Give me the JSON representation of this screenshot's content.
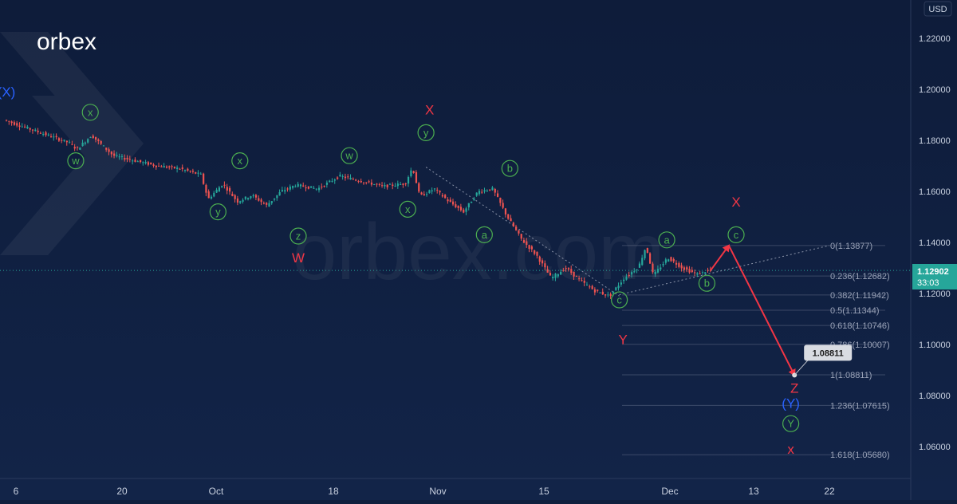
{
  "brand": {
    "logo_text": "orbex",
    "watermark_text": "orbex.com"
  },
  "currency": "USD",
  "price_badge": {
    "price": "1.12902",
    "countdown": "33:03"
  },
  "colors": {
    "background": "#0f1f3d",
    "wave_green": "#4caf50",
    "wave_red": "#f23645",
    "wave_blue": "#2962ff",
    "candle_up": "#26a69a",
    "candle_down": "#ef5350",
    "badge_bg": "#26a69a",
    "arrow": "#f23645"
  },
  "chart_data": {
    "type": "candlestick",
    "instrument_currency": "USD",
    "y_axis": {
      "ticks": [
        "1.22000",
        "1.20000",
        "1.18000",
        "1.16000",
        "1.14000",
        "1.12000",
        "1.10000",
        "1.08000",
        "1.06000"
      ],
      "range": [
        1.048,
        1.231
      ]
    },
    "x_axis": {
      "ticks": [
        "6",
        "20",
        "Oct",
        "18",
        "Nov",
        "15",
        "Dec",
        "13",
        "22"
      ]
    },
    "price_path": [
      [
        0,
        1.188
      ],
      [
        3,
        1.185
      ],
      [
        6,
        1.182
      ],
      [
        9,
        1.179
      ],
      [
        10,
        1.1765
      ],
      [
        12,
        1.182
      ],
      [
        15,
        1.174
      ],
      [
        18,
        1.172
      ],
      [
        21,
        1.17
      ],
      [
        24,
        1.169
      ],
      [
        27,
        1.1665
      ],
      [
        28,
        1.157
      ],
      [
        30,
        1.163
      ],
      [
        32,
        1.156
      ],
      [
        34,
        1.1585
      ],
      [
        36,
        1.1545
      ],
      [
        38,
        1.16
      ],
      [
        40,
        1.1625
      ],
      [
        43,
        1.161
      ],
      [
        46,
        1.166
      ],
      [
        49,
        1.164
      ],
      [
        52,
        1.162
      ],
      [
        55,
        1.163
      ],
      [
        56,
        1.1695
      ],
      [
        57,
        1.158
      ],
      [
        59,
        1.161
      ],
      [
        61,
        1.156
      ],
      [
        63,
        1.152
      ],
      [
        65,
        1.16
      ],
      [
        67,
        1.161
      ],
      [
        69,
        1.15
      ],
      [
        71,
        1.141
      ],
      [
        73,
        1.135
      ],
      [
        75,
        1.126
      ],
      [
        77,
        1.13
      ],
      [
        79,
        1.125
      ],
      [
        81,
        1.121
      ],
      [
        83,
        1.119
      ],
      [
        85,
        1.126
      ],
      [
        87,
        1.1305
      ],
      [
        88,
        1.1385
      ],
      [
        89,
        1.127
      ],
      [
        91,
        1.134
      ],
      [
        93,
        1.13
      ],
      [
        95,
        1.1275
      ],
      [
        96.5,
        1.129
      ]
    ],
    "wave_labels": [
      {
        "text": "(X)",
        "x": 0,
        "price": 1.199,
        "color": "blue",
        "circled": false
      },
      {
        "text": "x",
        "x": 11.5,
        "price": 1.191,
        "color": "green",
        "circled": true
      },
      {
        "text": "w",
        "x": 9.5,
        "price": 1.172,
        "color": "green",
        "circled": true
      },
      {
        "text": "x",
        "x": 32,
        "price": 1.172,
        "color": "green",
        "circled": true
      },
      {
        "text": "y",
        "x": 29,
        "price": 1.152,
        "color": "green",
        "circled": true
      },
      {
        "text": "z",
        "x": 40,
        "price": 1.1425,
        "color": "green",
        "circled": true
      },
      {
        "text": "W",
        "x": 40,
        "price": 1.134,
        "color": "red",
        "circled": false
      },
      {
        "text": "w",
        "x": 47,
        "price": 1.174,
        "color": "green",
        "circled": true
      },
      {
        "text": "x",
        "x": 55,
        "price": 1.153,
        "color": "green",
        "circled": true
      },
      {
        "text": "X",
        "x": 58,
        "price": 1.192,
        "color": "red",
        "circled": false
      },
      {
        "text": "y",
        "x": 57.5,
        "price": 1.183,
        "color": "green",
        "circled": true
      },
      {
        "text": "b",
        "x": 69,
        "price": 1.169,
        "color": "green",
        "circled": true
      },
      {
        "text": "a",
        "x": 65.5,
        "price": 1.143,
        "color": "green",
        "circled": true
      },
      {
        "text": "c",
        "x": 84,
        "price": 1.1175,
        "color": "green",
        "circled": true
      },
      {
        "text": "Y",
        "x": 84.5,
        "price": 1.102,
        "color": "red",
        "circled": false
      },
      {
        "text": "a",
        "x": 90.5,
        "price": 1.141,
        "color": "green",
        "circled": true
      },
      {
        "text": "b",
        "x": 96,
        "price": 1.124,
        "color": "green",
        "circled": true
      },
      {
        "text": "X",
        "x": 100,
        "price": 1.156,
        "color": "red",
        "circled": false
      },
      {
        "text": "c",
        "x": 100,
        "price": 1.143,
        "color": "green",
        "circled": true
      },
      {
        "text": "Z",
        "x": 108,
        "price": 1.083,
        "color": "red",
        "circled": false
      },
      {
        "text": "(Y)",
        "x": 107.5,
        "price": 1.077,
        "color": "blue",
        "circled": false
      },
      {
        "text": "Y",
        "x": 107.5,
        "price": 1.069,
        "color": "green",
        "circled": true
      },
      {
        "text": "x",
        "x": 107.5,
        "price": 1.059,
        "color": "red",
        "circled": false
      }
    ],
    "fibonacci": [
      {
        "label": "0(1.13877)",
        "price": 1.13877
      },
      {
        "label": "0.236(1.12682)",
        "price": 1.12682
      },
      {
        "label": "0.382(1.11942)",
        "price": 1.11942
      },
      {
        "label": "0.5(1.11344)",
        "price": 1.11344
      },
      {
        "label": "0.618(1.10746)",
        "price": 1.10746
      },
      {
        "label": "0.786(1.10007)",
        "price": 1.10007
      },
      {
        "label": "1(1.08811)",
        "price": 1.08811
      },
      {
        "label": "1.236(1.07615)",
        "price": 1.07615
      },
      {
        "label": "1.618(1.05680)",
        "price": 1.0568
      }
    ],
    "projection": {
      "points": [
        [
          96.5,
          1.129
        ],
        [
          99,
          1.1388
        ],
        [
          108,
          1.088
        ]
      ],
      "target_label": "1.08811"
    },
    "current_price": 1.12902
  }
}
